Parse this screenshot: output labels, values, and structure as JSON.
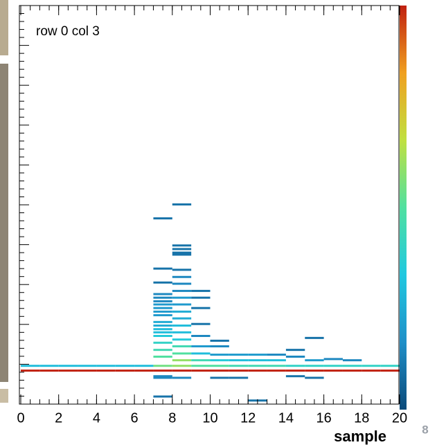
{
  "chart_data": {
    "type": "heatmap",
    "annotation": "row 0 col 3",
    "x_label": "sample",
    "page_number": "8",
    "xlim": [
      0,
      20
    ],
    "xticks": [
      0,
      2,
      4,
      6,
      8,
      10,
      12,
      14,
      16,
      18,
      20
    ],
    "ylim": [
      0,
      100
    ],
    "colormap": [
      "#0b4a7a",
      "#1f8fc8",
      "#20c8e0",
      "#50e0a0",
      "#c0e040",
      "#f0a020",
      "#c02010"
    ],
    "cells": {
      "x": [
        0.5,
        1.5,
        2.5,
        3.5,
        4.5,
        5.5,
        6.5,
        7.5,
        8.5,
        9.5,
        10.5,
        11.5,
        12.5,
        13.5,
        14.5,
        15.5,
        16.5,
        17.5,
        18.5,
        19.5,
        0.5,
        1.5,
        2.5,
        3.5,
        4.5,
        5.5,
        6.5,
        7.5,
        8.5,
        9.5,
        10.5,
        11.5,
        12.5,
        13.5,
        14.5,
        15.5,
        16.5,
        17.5,
        18.5,
        19.5,
        7.5,
        7.5,
        7.5,
        7.5,
        7.5,
        7.5,
        7.5,
        7.5,
        7.5,
        7.5,
        7.5,
        7.5,
        7.5,
        7.5,
        7.5,
        7.5,
        7.5,
        7.5,
        7.5,
        7.5,
        7.5,
        8.5,
        8.5,
        8.5,
        8.5,
        8.5,
        8.5,
        8.5,
        8.5,
        8.5,
        8.5,
        8.5,
        8.5,
        8.5,
        8.5,
        8.5,
        8.5,
        8.5,
        8.5,
        8.5,
        8.5,
        9.5,
        9.5,
        9.5,
        9.5,
        9.5,
        9.5,
        9.5,
        9.5,
        10.5,
        10.5,
        10.5,
        10.5,
        10.5,
        11.5,
        11.5,
        11.5,
        12.5,
        12.5,
        12.5,
        13.5,
        13.5,
        14.5,
        14.5,
        14.5,
        15.5,
        15.5,
        15.5,
        16.5,
        17.5
      ],
      "y": [
        9.6,
        9.6,
        9.6,
        9.6,
        9.6,
        9.6,
        9.6,
        9.6,
        9.6,
        9.6,
        9.6,
        9.6,
        9.6,
        9.6,
        9.6,
        9.6,
        9.6,
        9.6,
        9.6,
        9.6,
        8.4,
        8.4,
        8.4,
        8.4,
        8.4,
        8.4,
        8.4,
        8.4,
        8.4,
        8.4,
        8.4,
        8.4,
        8.4,
        8.4,
        8.4,
        8.4,
        8.4,
        8.4,
        8.4,
        8.4,
        46.6,
        34.0,
        30.5,
        27.6,
        26.7,
        25.8,
        25.0,
        24.1,
        23.2,
        22.3,
        20.6,
        19.7,
        18.8,
        18.0,
        17.1,
        15.4,
        13.6,
        11.9,
        7.0,
        6.6,
        1.9,
        50.1,
        39.8,
        38.9,
        38.0,
        37.5,
        33.7,
        31.9,
        30.2,
        28.4,
        26.7,
        25.0,
        23.2,
        21.5,
        19.7,
        18.0,
        16.2,
        14.5,
        12.7,
        11.0,
        6.6,
        28.4,
        26.7,
        24.1,
        20.1,
        17.1,
        14.5,
        12.7,
        11.0,
        15.9,
        14.5,
        12.4,
        11.0,
        6.6,
        12.4,
        11.0,
        6.6,
        12.4,
        11.0,
        0.9,
        12.4,
        11.0,
        13.6,
        11.9,
        7.0,
        16.6,
        11.0,
        6.6,
        11.3,
        11.0
      ],
      "z": [
        0.3,
        0.3,
        0.3,
        0.3,
        0.3,
        0.3,
        0.3,
        0.55,
        0.6,
        0.5,
        0.5,
        0.45,
        0.45,
        0.45,
        0.4,
        0.4,
        0.4,
        0.4,
        0.4,
        0.4,
        1,
        1,
        1,
        1,
        1,
        1,
        1,
        1,
        1,
        1,
        1,
        1,
        1,
        1,
        1,
        1,
        1,
        1,
        1,
        1,
        0.1,
        0.1,
        0.1,
        0.15,
        0.15,
        0.15,
        0.2,
        0.2,
        0.2,
        0.2,
        0.25,
        0.25,
        0.3,
        0.3,
        0.35,
        0.4,
        0.45,
        0.5,
        0.15,
        0.15,
        0.1,
        0.1,
        0.1,
        0.1,
        0.1,
        0.1,
        0.1,
        0.15,
        0.15,
        0.15,
        0.2,
        0.2,
        0.25,
        0.25,
        0.3,
        0.3,
        0.35,
        0.45,
        0.5,
        0.6,
        0.15,
        0.1,
        0.1,
        0.1,
        0.1,
        0.15,
        0.2,
        0.3,
        0.45,
        0.1,
        0.15,
        0.2,
        0.35,
        0.1,
        0.2,
        0.3,
        0.1,
        0.2,
        0.3,
        0.1,
        0.15,
        0.3,
        0.1,
        0.15,
        0.1,
        0.1,
        0.2,
        0.1,
        0.15,
        0.15
      ]
    }
  }
}
